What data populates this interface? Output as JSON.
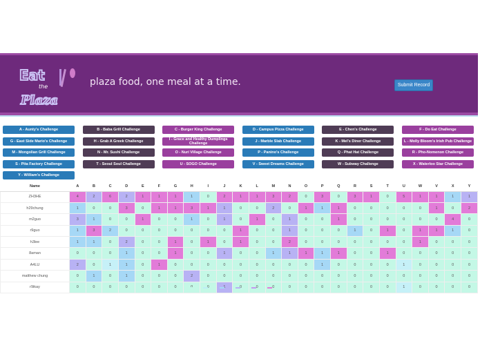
{
  "header": {
    "logo_text": "Eat the Plaza",
    "tagline": "plaza food, one meal at a time.",
    "submit_label": "Submit Record"
  },
  "challenges": [
    "A - Aunty's Challenge",
    "B - Baba Grill Challenge",
    "C - Burger King Challenge",
    "D - Campus Pizza Challenge",
    "E - Chen's Challenge",
    "F - Do Eat Challenge",
    "G - East Side Mario's Challenge",
    "H - Grab A Greek Challenge",
    "I - Grace and Healthy Dumplings Challenge",
    "J - Marble Slab Challenge",
    "K - Mel's Diner Challenge",
    "L - Molly Bloom's Irish Pub Challenge",
    "M - Mongolian Grill Challenge",
    "N - Mr. Sushi Challenge",
    "O - Nuri Village Challenge",
    "P - Panino's Challenge",
    "Q - Phat Hat Challenge",
    "R - Pho-Nomenon Challenge",
    "S - Pita Factory Challenge",
    "T - Seoul Soul Challenge",
    "U - SOGO Challenge",
    "V - Sweet Dreams Challenge",
    "W - Subway Challenge",
    "X - Waterloo Star Challenge",
    "Y - William's Challenge"
  ],
  "button_colors": [
    "#2a7bb8",
    "#4f3c55",
    "#9a3f9e"
  ],
  "table": {
    "name_header": "Name",
    "columns": [
      "A",
      "B",
      "C",
      "D",
      "E",
      "F",
      "G",
      "H",
      "I",
      "J",
      "K",
      "L",
      "M",
      "N",
      "O",
      "P",
      "Q",
      "R",
      "S",
      "T",
      "U",
      "W",
      "V",
      "X",
      "Y"
    ],
    "cell_colors": {
      "m": "#e27bd8",
      "l": "#b8b2f4",
      "b": "#a6d8f6",
      "c": "#c6f1f8",
      "z": "#c4f8e6"
    },
    "rows": [
      {
        "name": "ZH3HE",
        "values": [
          4,
          2,
          6,
          2,
          1,
          1,
          1,
          1,
          0,
          2,
          1,
          1,
          3,
          2,
          0,
          3,
          0,
          3,
          1,
          0,
          5,
          1,
          1,
          1,
          1
        ],
        "colors": "mlmlmmmbzmmmmmzmzmmzmmmbl"
      },
      {
        "name": "h29chung",
        "values": [
          1,
          0,
          0,
          3,
          0,
          1,
          1,
          3,
          1,
          1,
          0,
          0,
          2,
          0,
          1,
          1,
          1,
          0,
          0,
          0,
          0,
          0,
          1,
          0,
          2
        ],
        "colors": "bzzmzmmmmlzzlzmbmzzzzzmzm"
      },
      {
        "name": "m2guo",
        "values": [
          3,
          1,
          0,
          0,
          1,
          0,
          0,
          1,
          0,
          1,
          0,
          1,
          0,
          1,
          0,
          0,
          1,
          0,
          0,
          0,
          0,
          0,
          0,
          4,
          0
        ],
        "colors": "lbzzmzzbzlzmzlzzmzzzzzzmz"
      },
      {
        "name": "r9guo",
        "values": [
          1,
          3,
          2,
          0,
          0,
          0,
          0,
          0,
          0,
          0,
          1,
          0,
          0,
          1,
          0,
          0,
          0,
          1,
          0,
          1,
          0,
          1,
          1,
          1,
          0
        ],
        "colors": "bmbzzzzzzzmzzlzzzbzmzmmbz"
      },
      {
        "name": "h3lee",
        "values": [
          1,
          1,
          0,
          2,
          0,
          0,
          1,
          0,
          1,
          0,
          1,
          0,
          0,
          2,
          0,
          0,
          0,
          0,
          0,
          0,
          0,
          1,
          0,
          0,
          0
        ],
        "colors": "bbzlzzmzmzmzzmzzzzzzzmzzz"
      },
      {
        "name": "8aman",
        "values": [
          0,
          0,
          0,
          1,
          0,
          0,
          1,
          0,
          0,
          1,
          0,
          0,
          1,
          1,
          1,
          1,
          1,
          0,
          0,
          1,
          0,
          0,
          0,
          0,
          0
        ],
        "colors": "zzzbzzmzzlzzblmbmzzmzzzzz"
      },
      {
        "name": "A4LU",
        "values": [
          2,
          0,
          1,
          1,
          0,
          1,
          0,
          0,
          0,
          0,
          0,
          0,
          0,
          0,
          0,
          1,
          0,
          0,
          0,
          0,
          1,
          0,
          0,
          0,
          0
        ],
        "colors": "lzcbzmzzzzzzzzzbzzzzczzzz"
      },
      {
        "name": "matthew chung",
        "values": [
          0,
          1,
          0,
          1,
          0,
          0,
          0,
          2,
          0,
          0,
          0,
          0,
          0,
          0,
          0,
          0,
          0,
          0,
          0,
          0,
          0,
          0,
          0,
          0,
          0
        ],
        "colors": "zbzbzzzlzzzzzzzzzzzzzzzzz"
      },
      {
        "name": "r9ikay",
        "values": [
          0,
          0,
          0,
          0,
          0,
          0,
          0,
          0,
          0,
          1,
          0,
          0,
          0,
          0,
          0,
          0,
          0,
          0,
          0,
          0,
          1,
          0,
          0,
          0,
          0
        ],
        "colors": "zzzzzzzzzlzzzzzzzzzzczzzz"
      }
    ]
  },
  "legend_colors": [
    "#c4f8e6",
    "#bdeef6",
    "#a6d8f6",
    "#b8b2f4",
    "#c39af0",
    "#e27bd8"
  ]
}
